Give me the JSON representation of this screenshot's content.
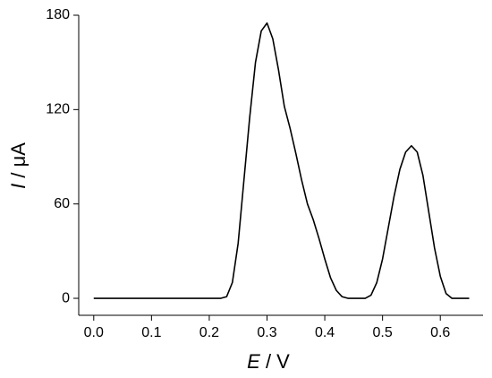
{
  "chart_data": {
    "type": "line",
    "xlabel_symbol": "E",
    "xlabel_unit": "/ V",
    "ylabel_symbol": "I",
    "ylabel_unit": "/ μA",
    "x": [
      0,
      0.01,
      0.02,
      0.03,
      0.04,
      0.05,
      0.06,
      0.07,
      0.08,
      0.09,
      0.1,
      0.11,
      0.12,
      0.13,
      0.14,
      0.15,
      0.16,
      0.17,
      0.18,
      0.19,
      0.2,
      0.21,
      0.22,
      0.23,
      0.24,
      0.25,
      0.26,
      0.27,
      0.28,
      0.29,
      0.3,
      0.31,
      0.32,
      0.33,
      0.34,
      0.35,
      0.36,
      0.37,
      0.38,
      0.39,
      0.4,
      0.41,
      0.42,
      0.43,
      0.44,
      0.45,
      0.46,
      0.47,
      0.48,
      0.49,
      0.5,
      0.51,
      0.52,
      0.53,
      0.54,
      0.55,
      0.56,
      0.57,
      0.58,
      0.59,
      0.6,
      0.61,
      0.62,
      0.63,
      0.64,
      0.65
    ],
    "series": [
      {
        "color": "#000000",
        "values": [
          0,
          0,
          0,
          0,
          0,
          0,
          0,
          0,
          0,
          0,
          0,
          0,
          0,
          0,
          0,
          0,
          0,
          0,
          0,
          0,
          0,
          0,
          0,
          1,
          10,
          35,
          75,
          115,
          150,
          170,
          175,
          165,
          145,
          122,
          108,
          92,
          75,
          60,
          50,
          38,
          25,
          13,
          5,
          1,
          0,
          0,
          0,
          0,
          2,
          10,
          25,
          45,
          65,
          82,
          93,
          97,
          93,
          78,
          55,
          32,
          14,
          3,
          0,
          0,
          0,
          0
        ]
      }
    ],
    "xlim": [
      -0.026,
      0.674
    ],
    "ylim": [
      -10.8,
      180
    ],
    "xticks": [
      {
        "value": 0,
        "label": "0.0"
      },
      0.1,
      0.2,
      0.3,
      0.4,
      0.5,
      0.6
    ],
    "yticks": [
      0,
      60,
      120,
      180
    ]
  }
}
